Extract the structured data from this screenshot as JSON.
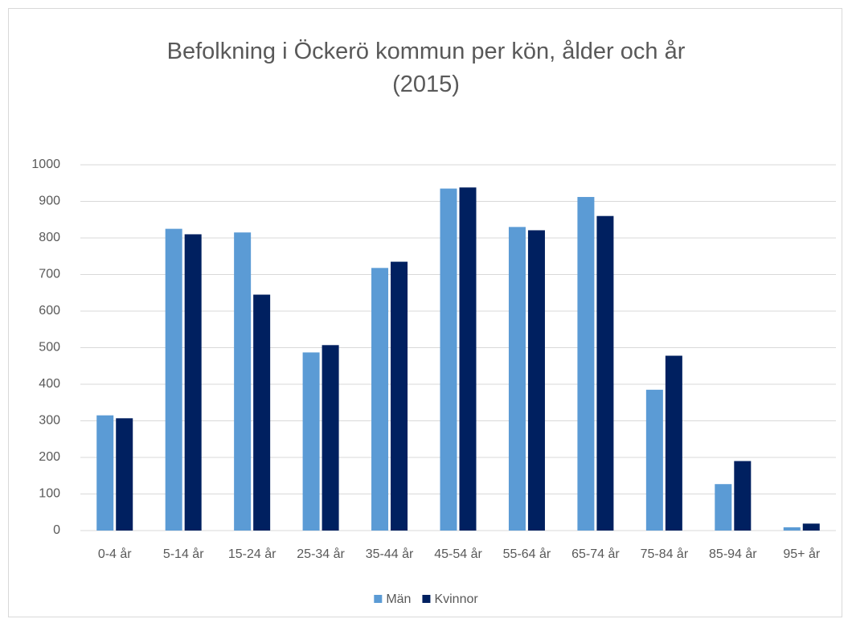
{
  "chart_data": {
    "type": "bar",
    "title": "Befolkning i Öckerö kommun per kön, ålder och år (2015)",
    "categories": [
      "0-4 år",
      "5-14 år",
      "15-24 år",
      "25-34 år",
      "35-44 år",
      "45-54 år",
      "55-64 år",
      "65-74 år",
      "75-84 år",
      "85-94 år",
      "95+ år"
    ],
    "series": [
      {
        "name": "Män",
        "color": "#5b9bd5",
        "values": [
          315,
          825,
          815,
          487,
          718,
          935,
          830,
          912,
          385,
          127,
          9
        ]
      },
      {
        "name": "Kvinnor",
        "color": "#002060",
        "values": [
          307,
          810,
          645,
          507,
          735,
          938,
          821,
          860,
          478,
          190,
          19
        ]
      }
    ],
    "ylim": [
      0,
      1000
    ],
    "yticks": [
      0,
      100,
      200,
      300,
      400,
      500,
      600,
      700,
      800,
      900,
      1000
    ],
    "grid": true,
    "legend": "bottom"
  }
}
